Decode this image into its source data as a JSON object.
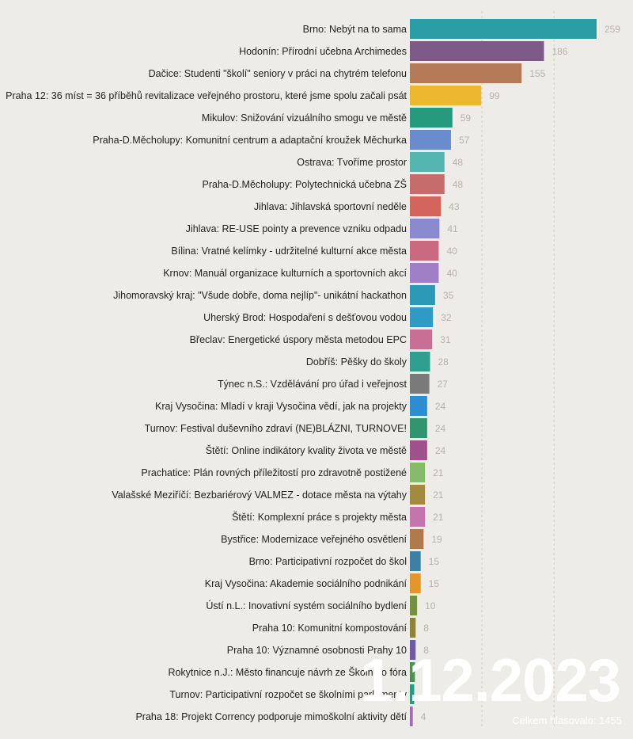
{
  "chart_data": {
    "type": "bar",
    "orientation": "horizontal",
    "grid": true,
    "xlim": [
      0,
      259
    ],
    "gridline_values": [
      100,
      200
    ],
    "categories": [
      "Brno: Nebýt na to sama",
      "Hodonín: Přírodní učebna Archimedes",
      "Dačice: Studenti \"školí\" seniory v práci na chytrém telefonu",
      "Praha 12: 36 míst = 36 příběhů revitalizace veřejného prostoru, které jsme spolu začali psát",
      "Mikulov: Snižování vizuálního smogu ve městě",
      "Praha-D.Měcholupy: Komunitní centrum a adaptační kroužek Měchurka",
      "Ostrava: Tvoříme prostor",
      "Praha-D.Měcholupy: Polytechnická učebna ZŠ",
      "Jihlava: Jihlavská sportovní neděle",
      "Jihlava: RE-USE pointy a prevence vzniku odpadu",
      "Bílina: Vratné kelímky - udržitelné kulturní akce města",
      "Krnov: Manuál organizace kulturních a sportovních akcí",
      "Jihomoravský kraj: \"Všude dobře, doma nejlíp\"- unikátní hackathon",
      "Uherský Brod: Hospodaření s dešťovou vodou",
      "Břeclav: Energetické úspory města metodou EPC",
      "Dobříš: Pěšky do školy",
      "Týnec n.S.: Vzdělávání pro úřad i veřejnost",
      "Kraj Vysočina: Mladí v kraji Vysočina vědí, jak na projekty",
      "Turnov: Festival duševního zdraví (NE)BLÁZNI, TURNOVE!",
      "Štětí: Online indikátory kvality života ve městě",
      "Prachatice: Plán rovných příležitostí pro zdravotně postižené",
      "Valašské Meziříčí: Bezbariérový VALMEZ - dotace města na výtahy",
      "Štětí: Komplexní práce s projekty města",
      "Bystřice: Modernizace veřejného osvětlení",
      "Brno: Participativní rozpočet do škol",
      "Kraj Vysočina: Akademie sociálního podnikání",
      "Ústí n.L.: Inovativní systém sociálního bydlení",
      "Praha 10: Komunitní kompostování",
      "Praha 10: Významné osobnosti Prahy 10",
      "Rokytnice n.J.: Město financuje návrh ze Školního fóra",
      "Turnov: Participativní rozpočet se školními parlamenty",
      "Praha 18: Projekt Corrency podporuje mimoškolní aktivity dětí"
    ],
    "values": [
      259,
      186,
      155,
      99,
      59,
      57,
      48,
      48,
      43,
      41,
      40,
      40,
      35,
      32,
      31,
      28,
      27,
      24,
      24,
      24,
      21,
      21,
      21,
      19,
      15,
      15,
      10,
      8,
      8,
      7,
      6,
      4
    ],
    "colors": [
      "#2a9ca3",
      "#7d5a85",
      "#b57a58",
      "#ecb82e",
      "#269a7d",
      "#6a8bcc",
      "#55b5b0",
      "#c66c6c",
      "#d4655c",
      "#8a8ad0",
      "#c96a80",
      "#a07fc6",
      "#2b98b6",
      "#2f9ac6",
      "#c86f95",
      "#2f9e8e",
      "#7a7a7a",
      "#2b8ed0",
      "#30946e",
      "#a0508a",
      "#86bb6c",
      "#a28a40",
      "#c375ad",
      "#b07a4a",
      "#3d80a3",
      "#e4962a",
      "#749040",
      "#8d8436",
      "#6e5aa0",
      "#4e9050",
      "#2a9a80",
      "#a06ab4"
    ]
  },
  "overlay": {
    "date": "1.12.2023",
    "total": "Celkem hlasovalo: 1455"
  }
}
